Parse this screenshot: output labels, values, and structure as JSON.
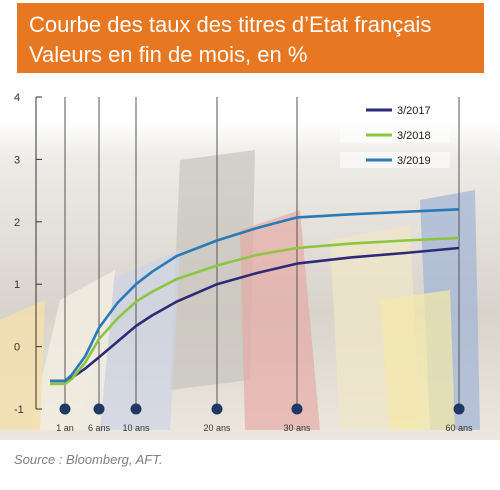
{
  "title": {
    "line1": "Courbe des taux des titres d’Etat français",
    "line2": "Valeurs en fin de mois, en %"
  },
  "source": "Source : Bloomberg, AFT.",
  "colors": {
    "header_bg": "#e87722",
    "series_2017": "#2e2a78",
    "series_2018": "#8cc63f",
    "series_2019": "#2a7ab8",
    "marker": "#1f3864"
  },
  "chart_data": {
    "type": "line",
    "ylim": [
      -1,
      4
    ],
    "yticks": [
      -1,
      0,
      1,
      2,
      3,
      4
    ],
    "xticks": [
      {
        "label": "1 an",
        "years": 1
      },
      {
        "label": "6 ans",
        "years": 6
      },
      {
        "label": "10 ans",
        "years": 10
      },
      {
        "label": "20 ans",
        "years": 20
      },
      {
        "label": "30 ans",
        "years": 30
      },
      {
        "label": "60 ans",
        "years": 60
      }
    ],
    "legend_position": "top-right",
    "series": [
      {
        "name": "3/2017",
        "color": "#2e2a78",
        "x": [
          0.25,
          1,
          2,
          4,
          6,
          8,
          10,
          12,
          15,
          20,
          25,
          30,
          40,
          50,
          60
        ],
        "y": [
          -0.55,
          -0.55,
          -0.5,
          -0.35,
          -0.17,
          0.08,
          0.33,
          0.5,
          0.72,
          1.0,
          1.18,
          1.33,
          1.43,
          1.5,
          1.58
        ]
      },
      {
        "name": "3/2018",
        "color": "#8cc63f",
        "x": [
          0.25,
          1,
          2,
          4,
          6,
          8,
          10,
          12,
          15,
          20,
          25,
          30,
          40,
          50,
          60
        ],
        "y": [
          -0.6,
          -0.6,
          -0.52,
          -0.25,
          0.12,
          0.45,
          0.72,
          0.88,
          1.08,
          1.3,
          1.47,
          1.58,
          1.65,
          1.7,
          1.74
        ]
      },
      {
        "name": "3/2019",
        "color": "#2a7ab8",
        "x": [
          0.25,
          1,
          2,
          4,
          6,
          8,
          10,
          12,
          15,
          20,
          25,
          30,
          40,
          50,
          60
        ],
        "y": [
          -0.55,
          -0.55,
          -0.45,
          -0.15,
          0.3,
          0.7,
          1.0,
          1.2,
          1.45,
          1.7,
          1.9,
          2.07,
          2.12,
          2.16,
          2.2
        ]
      }
    ]
  }
}
